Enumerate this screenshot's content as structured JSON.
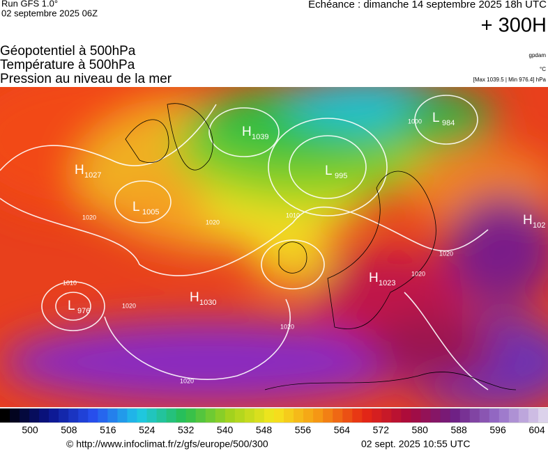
{
  "header": {
    "run": "Run GFS 1.0°",
    "date": "02 septembre 2025 06Z",
    "echeance": "Echéance : dimanche 14 septembre 2025 18h UTC",
    "lead": "+ 300H",
    "titles": [
      "Géopotentiel à 500hPa",
      "Température à 500hPa",
      "Pression au niveau de la mer"
    ],
    "units": [
      "gpdam",
      "°C",
      "[Max 1039.5 | Min 976.4] hPa"
    ]
  },
  "centers": [
    {
      "type": "H",
      "value": "1027"
    },
    {
      "type": "L",
      "value": "1005"
    },
    {
      "type": "H",
      "value": "1039"
    },
    {
      "type": "L",
      "value": "995"
    },
    {
      "type": "L",
      "value": "984"
    },
    {
      "type": "H",
      "value": "102"
    },
    {
      "type": "H",
      "value": "1023"
    },
    {
      "type": "H",
      "value": "1030"
    },
    {
      "type": "L",
      "value": "976"
    }
  ],
  "isobar_labels": [
    "1020",
    "1020",
    "1020",
    "1020",
    "1020",
    "1020",
    "1010",
    "1010",
    "1000",
    "1020"
  ],
  "colorbar": {
    "ticks": [
      500,
      508,
      516,
      524,
      532,
      540,
      548,
      556,
      564,
      572,
      580,
      588,
      596,
      604
    ]
  },
  "footer": {
    "url": "© http://www.infoclimat.fr/z/gfs/europe/500/300",
    "stamp": "02 sept. 2025 10:55 UTC"
  }
}
